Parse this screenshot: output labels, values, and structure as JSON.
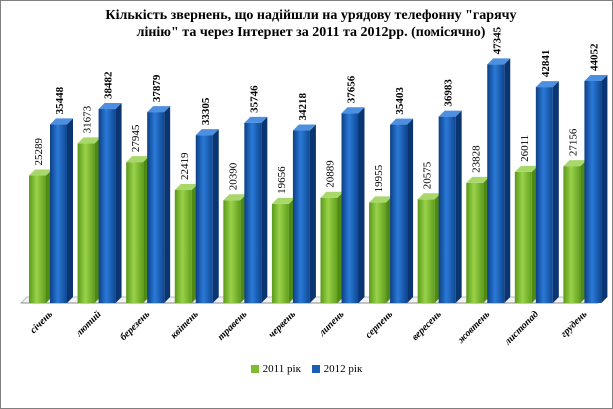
{
  "chart_data": {
    "type": "bar",
    "title_line1": "Кількість  звернень, що надійшли на урядову телефонну \"гарячу",
    "title_line2": "лінію\" та через Інтернет за 2011 та 2012рр. (помісячно)",
    "categories": [
      "січень",
      "лютий",
      "березень",
      "квітень",
      "травень",
      "червень",
      "липень",
      "серпень",
      "вересень",
      "жовтень",
      "листопад",
      "грудень"
    ],
    "series": [
      {
        "name": "2011 рік",
        "color": "#7ebd2d",
        "values": [
          25289,
          31673,
          27945,
          22419,
          20390,
          19656,
          20889,
          19955,
          20575,
          23828,
          26011,
          27156
        ]
      },
      {
        "name": "2012 рік",
        "color": "#1a5fb4",
        "values": [
          35448,
          38482,
          37879,
          33305,
          35746,
          34218,
          37656,
          35403,
          36983,
          47345,
          42841,
          44052
        ]
      }
    ],
    "ylim": [
      0,
      50000
    ],
    "grid": false,
    "legend_position": "bottom"
  }
}
